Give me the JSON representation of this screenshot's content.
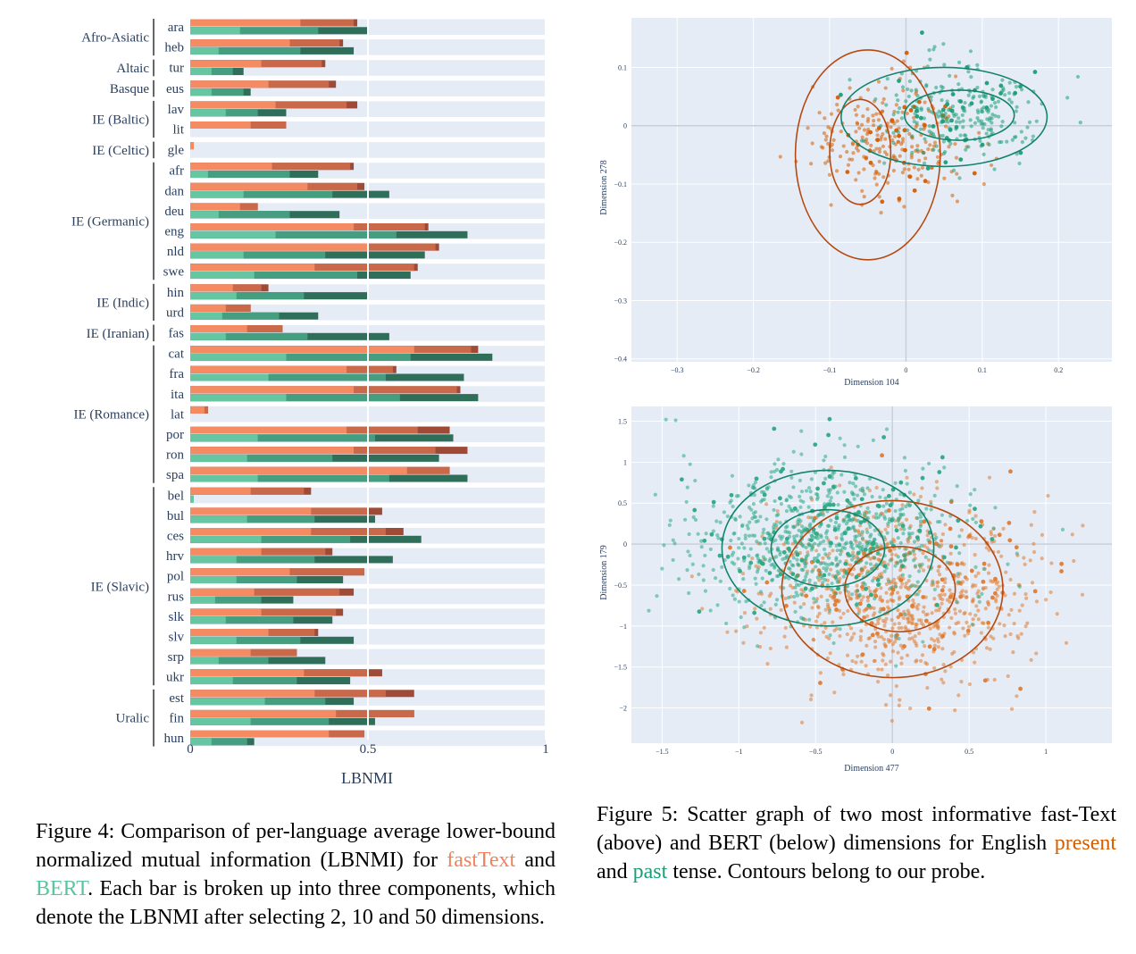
{
  "figure4": {
    "caption": {
      "prefix": "Figure 4: Comparison of per-language average lower-bound normalized mutual information (LBNMI) for",
      "fasttext": "fastText",
      "and": "and",
      "bert": "BERT",
      "suffix": ". Each bar is broken up into three components, which denote the LBNMI after selecting 2, 10 and 50 dimensions."
    },
    "chart_data": {
      "type": "bar",
      "orientation": "horizontal",
      "xlabel": "LBNMI",
      "xlim": [
        0,
        1
      ],
      "xticks": [
        "0",
        "0.5",
        "1"
      ],
      "stack_components": [
        "2 dims",
        "10 dims",
        "50 dims"
      ],
      "groups": [
        {
          "name": "Afro-Asiatic",
          "langs": [
            "ara",
            "heb"
          ]
        },
        {
          "name": "Altaic",
          "langs": [
            "tur"
          ]
        },
        {
          "name": "Basque",
          "langs": [
            "eus"
          ]
        },
        {
          "name": "IE (Baltic)",
          "langs": [
            "lav",
            "lit"
          ]
        },
        {
          "name": "IE (Celtic)",
          "langs": [
            "gle"
          ]
        },
        {
          "name": "IE (Germanic)",
          "langs": [
            "afr",
            "dan",
            "deu",
            "eng",
            "nld",
            "swe"
          ]
        },
        {
          "name": "IE (Indic)",
          "langs": [
            "hin",
            "urd"
          ]
        },
        {
          "name": "IE (Iranian)",
          "langs": [
            "fas"
          ]
        },
        {
          "name": "IE (Romance)",
          "langs": [
            "cat",
            "fra",
            "ita",
            "lat",
            "por",
            "ron",
            "spa"
          ]
        },
        {
          "name": "IE (Slavic)",
          "langs": [
            "bel",
            "bul",
            "ces",
            "hrv",
            "pol",
            "rus",
            "slk",
            "slv",
            "srp",
            "ukr"
          ]
        },
        {
          "name": "Uralic",
          "langs": [
            "est",
            "fin",
            "hun"
          ]
        }
      ],
      "series": [
        {
          "name": "fastText",
          "colors": [
            "#f58b63",
            "#c9694a",
            "#9e4a36"
          ],
          "values": {
            "ara": [
              0.31,
              0.46,
              0.47
            ],
            "heb": [
              0.28,
              0.42,
              0.43
            ],
            "tur": [
              0.2,
              0.37,
              0.38
            ],
            "eus": [
              0.22,
              0.39,
              0.41
            ],
            "lav": [
              0.24,
              0.44,
              0.47
            ],
            "lit": [
              0.17,
              0.27,
              0.27
            ],
            "gle": [
              0.01,
              0.01,
              0.01
            ],
            "afr": [
              0.23,
              0.45,
              0.46
            ],
            "dan": [
              0.33,
              0.47,
              0.49
            ],
            "deu": [
              0.14,
              0.19,
              0.19
            ],
            "eng": [
              0.46,
              0.66,
              0.67
            ],
            "nld": [
              0.5,
              0.69,
              0.7
            ],
            "swe": [
              0.35,
              0.63,
              0.64
            ],
            "hin": [
              0.12,
              0.2,
              0.22
            ],
            "urd": [
              0.1,
              0.17,
              0.17
            ],
            "fas": [
              0.16,
              0.26,
              0.26
            ],
            "cat": [
              0.63,
              0.79,
              0.81
            ],
            "fra": [
              0.44,
              0.57,
              0.58
            ],
            "ita": [
              0.46,
              0.75,
              0.76
            ],
            "lat": [
              0.04,
              0.05,
              0.05
            ],
            "por": [
              0.44,
              0.64,
              0.73
            ],
            "ron": [
              0.46,
              0.69,
              0.78
            ],
            "spa": [
              0.61,
              0.73,
              0.73
            ],
            "bel": [
              0.17,
              0.32,
              0.34
            ],
            "bul": [
              0.34,
              0.5,
              0.54
            ],
            "ces": [
              0.34,
              0.55,
              0.6
            ],
            "hrv": [
              0.2,
              0.38,
              0.4
            ],
            "pol": [
              0.28,
              0.49,
              0.49
            ],
            "rus": [
              0.18,
              0.42,
              0.46
            ],
            "slk": [
              0.2,
              0.41,
              0.43
            ],
            "slv": [
              0.22,
              0.35,
              0.36
            ],
            "srp": [
              0.17,
              0.3,
              0.3
            ],
            "ukr": [
              0.32,
              0.5,
              0.54
            ],
            "est": [
              0.35,
              0.55,
              0.63
            ],
            "fin": [
              0.41,
              0.63,
              0.63
            ],
            "hun": [
              0.39,
              0.49,
              0.49
            ]
          }
        },
        {
          "name": "BERT",
          "colors": [
            "#66c6a1",
            "#459e80",
            "#2f6e58"
          ],
          "values": {
            "ara": [
              0.14,
              0.36,
              0.5
            ],
            "heb": [
              0.08,
              0.31,
              0.46
            ],
            "tur": [
              0.06,
              0.12,
              0.15
            ],
            "eus": [
              0.06,
              0.15,
              0.17
            ],
            "lav": [
              0.1,
              0.19,
              0.27
            ],
            "lit": [
              0.0,
              0.0,
              0.0
            ],
            "gle": [
              0.0,
              0.0,
              0.0
            ],
            "afr": [
              0.05,
              0.28,
              0.36
            ],
            "dan": [
              0.15,
              0.4,
              0.56
            ],
            "deu": [
              0.08,
              0.28,
              0.42
            ],
            "eng": [
              0.24,
              0.58,
              0.78
            ],
            "nld": [
              0.15,
              0.38,
              0.66
            ],
            "swe": [
              0.18,
              0.47,
              0.62
            ],
            "hin": [
              0.13,
              0.32,
              0.5
            ],
            "urd": [
              0.09,
              0.25,
              0.36
            ],
            "fas": [
              0.1,
              0.33,
              0.56
            ],
            "cat": [
              0.27,
              0.62,
              0.85
            ],
            "fra": [
              0.22,
              0.55,
              0.77
            ],
            "ita": [
              0.27,
              0.59,
              0.81
            ],
            "lat": [
              0.0,
              0.0,
              0.0
            ],
            "por": [
              0.19,
              0.52,
              0.74
            ],
            "ron": [
              0.16,
              0.4,
              0.7
            ],
            "spa": [
              0.19,
              0.56,
              0.78
            ],
            "bel": [
              0.01,
              0.01,
              0.01
            ],
            "bul": [
              0.16,
              0.35,
              0.52
            ],
            "ces": [
              0.2,
              0.45,
              0.65
            ],
            "hrv": [
              0.13,
              0.35,
              0.57
            ],
            "pol": [
              0.13,
              0.3,
              0.43
            ],
            "rus": [
              0.07,
              0.2,
              0.29
            ],
            "slk": [
              0.1,
              0.29,
              0.4
            ],
            "slv": [
              0.13,
              0.31,
              0.46
            ],
            "srp": [
              0.08,
              0.22,
              0.38
            ],
            "ukr": [
              0.12,
              0.3,
              0.45
            ],
            "est": [
              0.21,
              0.38,
              0.46
            ],
            "fin": [
              0.17,
              0.39,
              0.52
            ],
            "hun": [
              0.06,
              0.16,
              0.18
            ]
          }
        }
      ]
    }
  },
  "figure5": {
    "caption": {
      "prefix": "Figure 5: Scatter graph of two most informative fast-Text (above) and BERT (below) dimensions for English",
      "present": "present",
      "and": "and",
      "past": "past",
      "suffix": "tense. Contours belong to our probe."
    },
    "chart_data": [
      {
        "type": "scatter",
        "title": "fastText",
        "xlabel": "Dimension 104",
        "ylabel": "Dimension 278",
        "xlim": [
          -0.36,
          0.27
        ],
        "ylim": [
          -0.405,
          0.185
        ],
        "xticks": [
          -0.3,
          -0.2,
          -0.1,
          0,
          0.1,
          0.2
        ],
        "xtick_labels": [
          "−0.3",
          "−0.2",
          "−0.1",
          "0",
          "0.1",
          "0.2"
        ],
        "yticks": [
          0.1,
          0,
          -0.1,
          -0.2,
          -0.3,
          -0.4
        ],
        "ytick_labels": [
          "0.1",
          "0",
          "−0.1",
          "−0.2",
          "−0.3",
          "−0.4"
        ],
        "series": [
          {
            "name": "present",
            "color": "#d55e00",
            "center": [
              -0.02,
              -0.02
            ],
            "spread": [
              0.05,
              0.05
            ],
            "n": 260
          },
          {
            "name": "past",
            "color": "#1b9e77",
            "center": [
              0.07,
              0.02
            ],
            "spread": [
              0.05,
              0.04
            ],
            "n": 280
          }
        ],
        "contours": [
          {
            "series": "present",
            "center": [
              -0.05,
              -0.05
            ],
            "radii": [
              0.095,
              0.18
            ]
          },
          {
            "series": "present",
            "center": [
              -0.06,
              -0.045
            ],
            "radii": [
              0.04,
              0.09
            ]
          },
          {
            "series": "past",
            "center": [
              0.05,
              0.015
            ],
            "radii": [
              0.135,
              0.085
            ]
          },
          {
            "series": "past",
            "center": [
              0.07,
              0.018
            ],
            "radii": [
              0.072,
              0.043
            ]
          }
        ]
      },
      {
        "type": "scatter",
        "title": "BERT",
        "xlabel": "Dimension 477",
        "ylabel": "Dimension 179",
        "xlim": [
          -1.7,
          1.43
        ],
        "ylim": [
          -2.43,
          1.68
        ],
        "xticks": [
          -1.5,
          -1,
          -0.5,
          0,
          0.5,
          1
        ],
        "xtick_labels": [
          "−1.5",
          "−1",
          "−0.5",
          "0",
          "0.5",
          "1"
        ],
        "yticks": [
          1.5,
          1,
          0.5,
          0,
          -0.5,
          -1,
          -1.5,
          -2
        ],
        "ytick_labels": [
          "1.5",
          "1",
          "0.5",
          "0",
          "−0.5",
          "−1",
          "−1.5",
          "−2"
        ],
        "series": [
          {
            "name": "present",
            "color": "#e07b30",
            "center": [
              0.05,
              -0.6
            ],
            "spread": [
              0.45,
              0.55
            ],
            "n": 900
          },
          {
            "name": "past",
            "color": "#2ca985",
            "center": [
              -0.45,
              0.05
            ],
            "spread": [
              0.45,
              0.45
            ],
            "n": 900
          }
        ],
        "contours": [
          {
            "series": "present",
            "center": [
              0.0,
              -0.55
            ],
            "radii": [
              0.72,
              1.08
            ]
          },
          {
            "series": "present",
            "center": [
              0.05,
              -0.55
            ],
            "radii": [
              0.36,
              0.52
            ]
          },
          {
            "series": "past",
            "center": [
              -0.42,
              -0.05
            ],
            "radii": [
              0.69,
              0.95
            ]
          },
          {
            "series": "past",
            "center": [
              -0.42,
              -0.05
            ],
            "radii": [
              0.37,
              0.47
            ]
          }
        ]
      }
    ]
  }
}
